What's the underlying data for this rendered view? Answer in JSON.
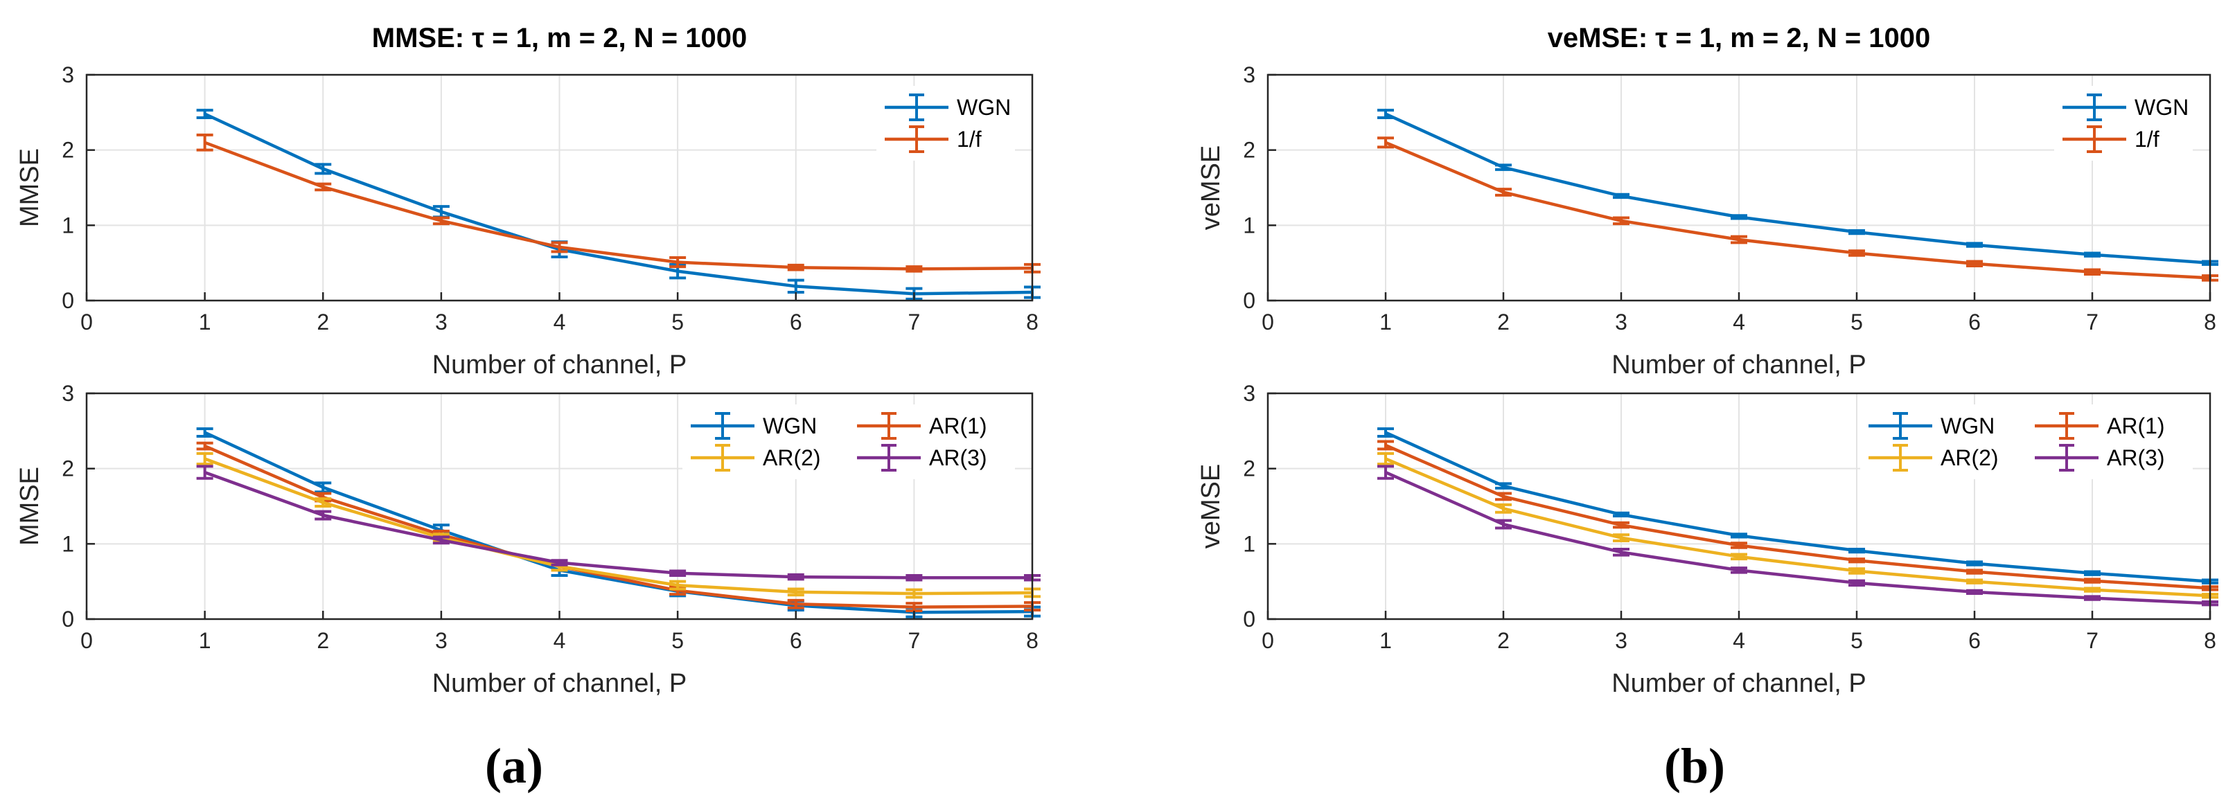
{
  "colors": {
    "WGN": "#0072BD",
    "1/f": "#D95319",
    "AR(1)": "#D95319",
    "AR(2)": "#EDB120",
    "AR(3)": "#7E2F8E",
    "grid": "#e3e3e3",
    "axis": "#262626"
  },
  "panel_labels": [
    "(a)",
    "(b)"
  ],
  "chart_data": [
    {
      "id": "a-top",
      "type": "line",
      "title": "MMSE: τ = 1, m = 2, N = 1000",
      "xlabel": "Number of channel, P",
      "ylabel": "MMSE",
      "xlim": [
        0,
        8
      ],
      "ylim": [
        0,
        3
      ],
      "xticks": [
        0,
        1,
        2,
        3,
        4,
        5,
        6,
        7,
        8
      ],
      "yticks": [
        0,
        1,
        2,
        3
      ],
      "grid": true,
      "legend": {
        "position": "top-right",
        "columns": 1
      },
      "x": [
        1,
        2,
        3,
        4,
        5,
        6,
        7,
        8
      ],
      "series": [
        {
          "name": "WGN",
          "values": [
            2.48,
            1.75,
            1.18,
            0.68,
            0.39,
            0.19,
            0.09,
            0.11
          ],
          "errors": [
            0.05,
            0.06,
            0.07,
            0.1,
            0.09,
            0.08,
            0.07,
            0.07
          ]
        },
        {
          "name": "1/f",
          "values": [
            2.1,
            1.51,
            1.06,
            0.71,
            0.51,
            0.44,
            0.42,
            0.43
          ],
          "errors": [
            0.1,
            0.04,
            0.04,
            0.06,
            0.06,
            0.03,
            0.03,
            0.05
          ]
        }
      ]
    },
    {
      "id": "a-bottom",
      "type": "line",
      "title": "",
      "xlabel": "Number of channel, P",
      "ylabel": "MMSE",
      "xlim": [
        0,
        8
      ],
      "ylim": [
        0,
        3
      ],
      "xticks": [
        0,
        1,
        2,
        3,
        4,
        5,
        6,
        7,
        8
      ],
      "yticks": [
        0,
        1,
        2,
        3
      ],
      "grid": true,
      "legend": {
        "position": "top-right",
        "columns": 2
      },
      "x": [
        1,
        2,
        3,
        4,
        5,
        6,
        7,
        8
      ],
      "series": [
        {
          "name": "WGN",
          "values": [
            2.48,
            1.75,
            1.18,
            0.65,
            0.37,
            0.18,
            0.09,
            0.1
          ],
          "errors": [
            0.05,
            0.06,
            0.07,
            0.07,
            0.06,
            0.06,
            0.06,
            0.06
          ]
        },
        {
          "name": "AR(1)",
          "values": [
            2.3,
            1.62,
            1.12,
            0.7,
            0.38,
            0.2,
            0.16,
            0.17
          ],
          "errors": [
            0.04,
            0.05,
            0.05,
            0.05,
            0.05,
            0.05,
            0.05,
            0.05
          ]
        },
        {
          "name": "AR(2)",
          "values": [
            2.13,
            1.55,
            1.08,
            0.7,
            0.45,
            0.36,
            0.34,
            0.35
          ],
          "errors": [
            0.07,
            0.05,
            0.05,
            0.05,
            0.05,
            0.04,
            0.05,
            0.05
          ]
        },
        {
          "name": "AR(3)",
          "values": [
            1.95,
            1.38,
            1.05,
            0.75,
            0.61,
            0.56,
            0.55,
            0.55
          ],
          "errors": [
            0.08,
            0.05,
            0.04,
            0.03,
            0.03,
            0.03,
            0.03,
            0.03
          ]
        }
      ]
    },
    {
      "id": "b-top",
      "type": "line",
      "title": "veMSE: τ = 1, m = 2, N = 1000",
      "xlabel": "Number of channel, P",
      "ylabel": "veMSE",
      "xlim": [
        0,
        8
      ],
      "ylim": [
        0,
        3
      ],
      "xticks": [
        0,
        1,
        2,
        3,
        4,
        5,
        6,
        7,
        8
      ],
      "yticks": [
        0,
        1,
        2,
        3
      ],
      "grid": true,
      "legend": {
        "position": "top-right",
        "columns": 1
      },
      "x": [
        1,
        2,
        3,
        4,
        5,
        6,
        7,
        8
      ],
      "series": [
        {
          "name": "WGN",
          "values": [
            2.48,
            1.77,
            1.39,
            1.11,
            0.91,
            0.74,
            0.61,
            0.5
          ],
          "errors": [
            0.05,
            0.03,
            0.02,
            0.02,
            0.02,
            0.02,
            0.02,
            0.02
          ]
        },
        {
          "name": "1/f",
          "values": [
            2.1,
            1.44,
            1.06,
            0.81,
            0.63,
            0.49,
            0.38,
            0.3
          ],
          "errors": [
            0.06,
            0.04,
            0.04,
            0.04,
            0.03,
            0.03,
            0.03,
            0.03
          ]
        }
      ]
    },
    {
      "id": "b-bottom",
      "type": "line",
      "title": "",
      "xlabel": "Number of channel, P",
      "ylabel": "veMSE",
      "xlim": [
        0,
        8
      ],
      "ylim": [
        0,
        3
      ],
      "xticks": [
        0,
        1,
        2,
        3,
        4,
        5,
        6,
        7,
        8
      ],
      "yticks": [
        0,
        1,
        2,
        3
      ],
      "grid": true,
      "legend": {
        "position": "top-right",
        "columns": 2
      },
      "x": [
        1,
        2,
        3,
        4,
        5,
        6,
        7,
        8
      ],
      "series": [
        {
          "name": "WGN",
          "values": [
            2.48,
            1.77,
            1.39,
            1.11,
            0.91,
            0.74,
            0.61,
            0.5
          ],
          "errors": [
            0.05,
            0.03,
            0.02,
            0.02,
            0.02,
            0.02,
            0.02,
            0.02
          ]
        },
        {
          "name": "AR(1)",
          "values": [
            2.31,
            1.63,
            1.25,
            0.98,
            0.78,
            0.63,
            0.51,
            0.41
          ],
          "errors": [
            0.05,
            0.04,
            0.03,
            0.03,
            0.02,
            0.02,
            0.02,
            0.02
          ]
        },
        {
          "name": "AR(2)",
          "values": [
            2.13,
            1.47,
            1.08,
            0.83,
            0.64,
            0.5,
            0.39,
            0.31
          ],
          "errors": [
            0.07,
            0.05,
            0.04,
            0.03,
            0.03,
            0.02,
            0.02,
            0.02
          ]
        },
        {
          "name": "AR(3)",
          "values": [
            1.95,
            1.26,
            0.89,
            0.65,
            0.48,
            0.36,
            0.28,
            0.21
          ],
          "errors": [
            0.08,
            0.05,
            0.04,
            0.03,
            0.03,
            0.02,
            0.02,
            0.02
          ]
        }
      ]
    }
  ]
}
